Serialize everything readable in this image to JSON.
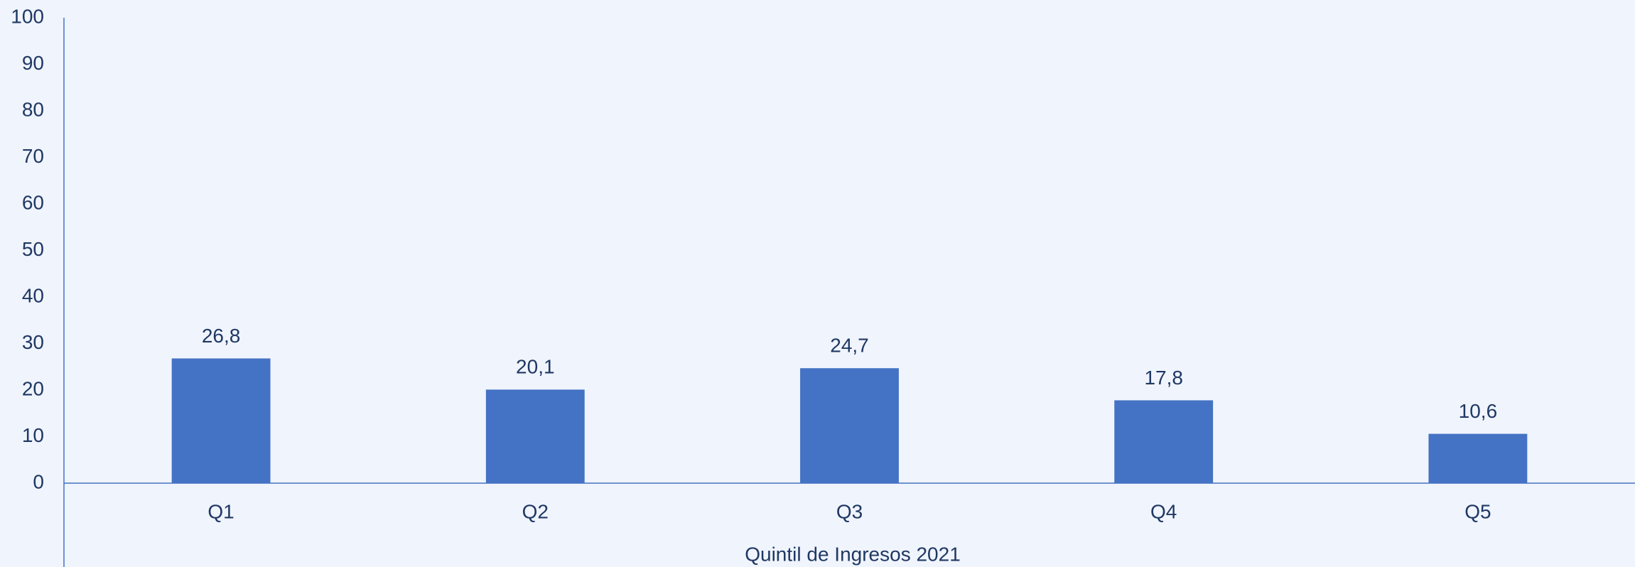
{
  "chart_data": {
    "type": "bar",
    "x_label": "Quintil de Ingresos 2021",
    "categories": [
      "Q1",
      "Q2",
      "Q3",
      "Q4",
      "Q5"
    ],
    "values": [
      26.8,
      20.1,
      24.7,
      17.8,
      10.6
    ],
    "value_labels": [
      "26,8",
      "20,1",
      "24,7",
      "17,8",
      "10,6"
    ],
    "color": "#4472c4",
    "ylim": [
      0,
      100
    ],
    "yticks": [
      0,
      10,
      20,
      30,
      40,
      50,
      60,
      70,
      80,
      90,
      100
    ],
    "grid": false
  }
}
